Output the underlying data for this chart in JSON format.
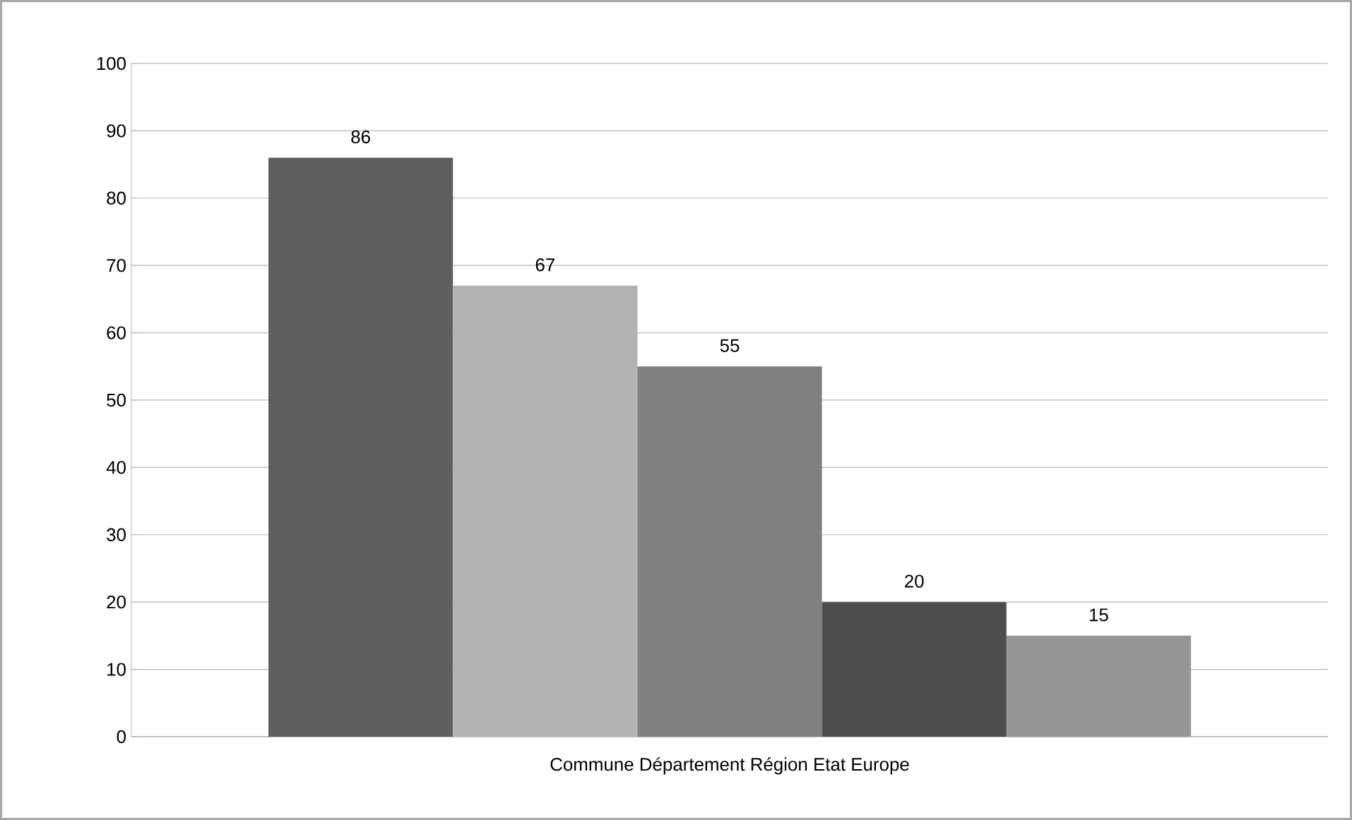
{
  "chart_data": {
    "type": "bar",
    "categories": [
      "Commune  Département Région Etat Europe"
    ],
    "series": [
      {
        "color": "#5f5f5f",
        "values": [
          86
        ]
      },
      {
        "color": "#b2b2b2",
        "values": [
          67
        ]
      },
      {
        "color": "#808080",
        "values": [
          55
        ]
      },
      {
        "color": "#4d4d4d",
        "values": [
          20
        ]
      },
      {
        "color": "#969696",
        "values": [
          15
        ]
      }
    ],
    "ylim": [
      0,
      100
    ],
    "yticks": [
      0,
      10,
      20,
      30,
      40,
      50,
      60,
      70,
      80,
      90,
      100
    ],
    "grid": "y",
    "data_labels": true
  }
}
